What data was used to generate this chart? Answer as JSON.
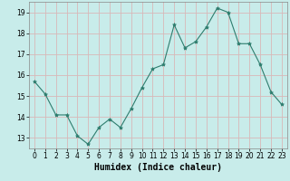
{
  "x": [
    0,
    1,
    2,
    3,
    4,
    5,
    6,
    7,
    8,
    9,
    10,
    11,
    12,
    13,
    14,
    15,
    16,
    17,
    18,
    19,
    20,
    21,
    22,
    23
  ],
  "y": [
    15.7,
    15.1,
    14.1,
    14.1,
    13.1,
    12.7,
    13.5,
    13.9,
    13.5,
    14.4,
    15.4,
    16.3,
    16.5,
    18.4,
    17.3,
    17.6,
    18.3,
    19.2,
    19.0,
    17.5,
    17.5,
    16.5,
    15.2,
    14.6
  ],
  "line_color": "#2e7d6e",
  "marker": "*",
  "marker_size": 3,
  "bg_color": "#c8ecea",
  "grid_color": "#d8b8b8",
  "xlabel": "Humidex (Indice chaleur)",
  "xlim": [
    -0.5,
    23.5
  ],
  "ylim": [
    12.5,
    19.5
  ],
  "yticks": [
    13,
    14,
    15,
    16,
    17,
    18,
    19
  ],
  "xticks": [
    0,
    1,
    2,
    3,
    4,
    5,
    6,
    7,
    8,
    9,
    10,
    11,
    12,
    13,
    14,
    15,
    16,
    17,
    18,
    19,
    20,
    21,
    22,
    23
  ],
  "label_fontsize": 7,
  "tick_fontsize": 5.5,
  "line_width": 0.8,
  "spine_color": "#888888"
}
